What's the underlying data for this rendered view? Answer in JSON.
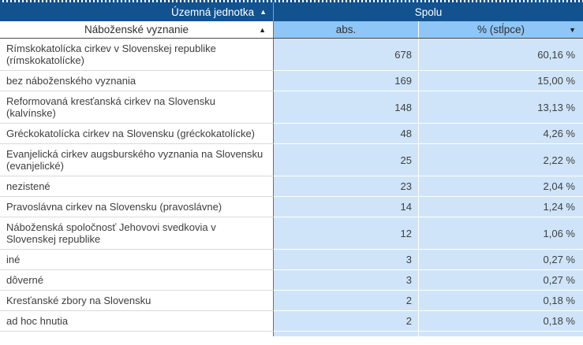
{
  "table": {
    "header": {
      "territorial_unit_label": "Územná jednotka",
      "territorial_unit_sort_icon": "▲",
      "spolu_label": "Spolu",
      "religion_label": "Náboženské vyznanie",
      "religion_sort_icon": "▲",
      "abs_label": "abs.",
      "pct_label": "% (stĺpce)",
      "pct_sort_icon": "▼"
    },
    "rows": [
      {
        "name": "Rímskokatolícka cirkev v Slovenskej republike (rímskokatolícke)",
        "abs": "678",
        "pct": "60,16 %"
      },
      {
        "name": "bez náboženského vyznania",
        "abs": "169",
        "pct": "15,00 %"
      },
      {
        "name": "Reformovaná kresťanská cirkev na Slovensku (kalvínske)",
        "abs": "148",
        "pct": "13,13 %"
      },
      {
        "name": "Gréckokatolícka cirkev na Slovensku (gréckokatolícke)",
        "abs": "48",
        "pct": "4,26 %"
      },
      {
        "name": "Evanjelická cirkev augsburského vyznania na Slovensku (evanjelické)",
        "abs": "25",
        "pct": "2,22 %"
      },
      {
        "name": "nezistené",
        "abs": "23",
        "pct": "2,04 %"
      },
      {
        "name": "Pravoslávna cirkev na Slovensku (pravoslávne)",
        "abs": "14",
        "pct": "1,24 %"
      },
      {
        "name": "Náboženská spoločnosť Jehovovi svedkovia v Slovenskej republike",
        "abs": "12",
        "pct": "1,06 %"
      },
      {
        "name": "iné",
        "abs": "3",
        "pct": "0,27 %"
      },
      {
        "name": "dôverné",
        "abs": "3",
        "pct": "0,27 %"
      },
      {
        "name": "Kresťanské zbory na Slovensku",
        "abs": "2",
        "pct": "0,18 %"
      },
      {
        "name": "ad hoc hnutia",
        "abs": "2",
        "pct": "0,18 %"
      }
    ],
    "colors": {
      "header_dark_blue": "#12528f",
      "header_light_blue": "#8ec6f8",
      "cell_light_blue": "#cfe4f8",
      "text_dark": "#3d3d3d"
    }
  }
}
